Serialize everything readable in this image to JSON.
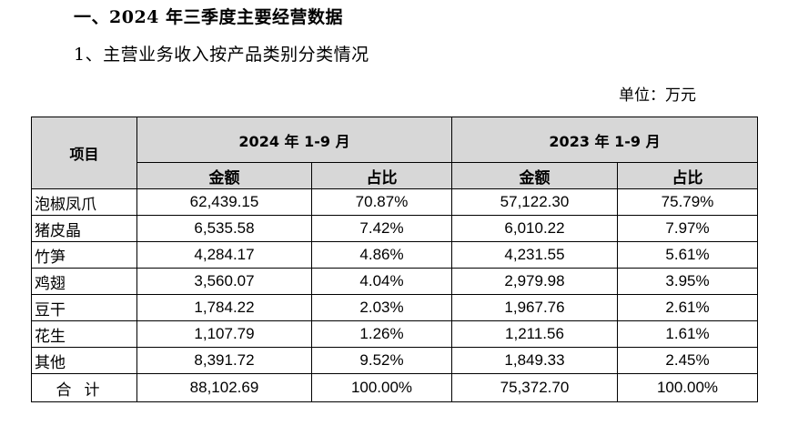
{
  "heading": "一、2024 年三季度主要经营数据",
  "subheading": "1、主营业务收入按产品类别分类情况",
  "unit": "单位：万元",
  "table": {
    "item_header": "项目",
    "period_2024": "2024 年 1-9 月",
    "period_2023": "2023 年 1-9 月",
    "amount_label": "金额",
    "share_label": "占比",
    "rows": [
      {
        "name": "泡椒凤爪",
        "amount_2024": "62,439.15",
        "share_2024": "70.87%",
        "amount_2023": "57,122.30",
        "share_2023": "75.79%"
      },
      {
        "name": "猪皮晶",
        "amount_2024": "6,535.58",
        "share_2024": "7.42%",
        "amount_2023": "6,010.22",
        "share_2023": "7.97%"
      },
      {
        "name": "竹笋",
        "amount_2024": "4,284.17",
        "share_2024": "4.86%",
        "amount_2023": "4,231.55",
        "share_2023": "5.61%"
      },
      {
        "name": "鸡翅",
        "amount_2024": "3,560.07",
        "share_2024": "4.04%",
        "amount_2023": "2,979.98",
        "share_2023": "3.95%"
      },
      {
        "name": "豆干",
        "amount_2024": "1,784.22",
        "share_2024": "2.03%",
        "amount_2023": "1,967.76",
        "share_2023": "2.61%"
      },
      {
        "name": "花生",
        "amount_2024": "1,107.79",
        "share_2024": "1.26%",
        "amount_2023": "1,211.56",
        "share_2023": "1.61%"
      },
      {
        "name": "其他",
        "amount_2024": "8,391.72",
        "share_2024": "9.52%",
        "amount_2023": "1,849.33",
        "share_2023": "2.45%"
      }
    ],
    "total": {
      "name": "合计",
      "amount_2024": "88,102.69",
      "share_2024": "100.00%",
      "amount_2023": "75,372.70",
      "share_2023": "100.00%"
    }
  }
}
